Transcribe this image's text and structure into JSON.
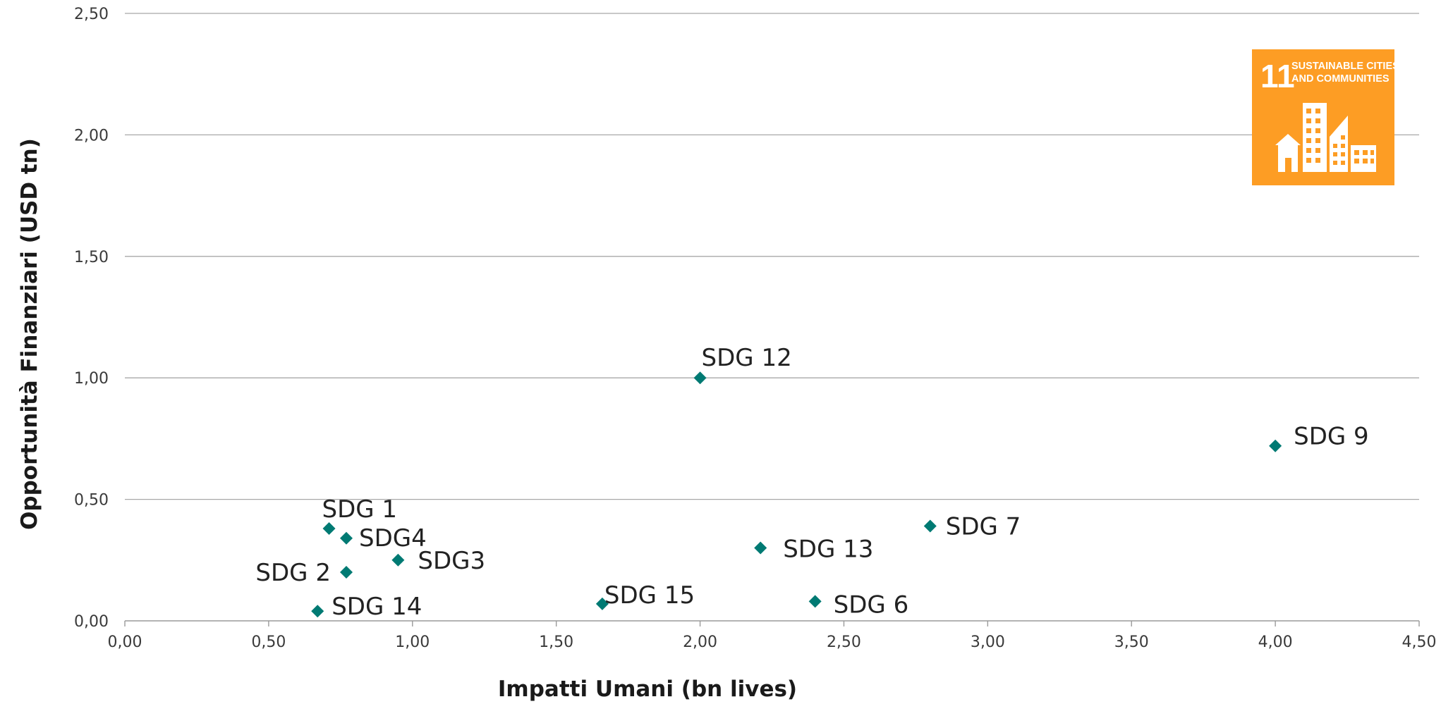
{
  "chart_data": {
    "type": "scatter",
    "xlabel": "Impatti Umani (bn lives)",
    "ylabel": "Opportunità Finanziari (USD tn)",
    "xlim": [
      0,
      4.5
    ],
    "ylim": [
      0,
      2.5
    ],
    "x_ticks": [
      "0,00",
      "0,50",
      "1,00",
      "1,50",
      "2,00",
      "2,50",
      "3,00",
      "3,50",
      "4,00",
      "4,50"
    ],
    "y_ticks": [
      "0,00",
      "0,50",
      "1,00",
      "1,50",
      "2,00",
      "2,50"
    ],
    "grid": "horizontal",
    "marker": "diamond",
    "marker_color": "#007a73",
    "points": [
      {
        "label": "SDG 1",
        "x": 0.71,
        "y": 0.38
      },
      {
        "label": "SDG4",
        "x": 0.77,
        "y": 0.34
      },
      {
        "label": "SDG 2",
        "x": 0.77,
        "y": 0.2
      },
      {
        "label": "SDG3",
        "x": 0.95,
        "y": 0.25
      },
      {
        "label": "SDG 14",
        "x": 0.67,
        "y": 0.04
      },
      {
        "label": "SDG 15",
        "x": 1.66,
        "y": 0.07
      },
      {
        "label": "SDG 12",
        "x": 2.0,
        "y": 1.0
      },
      {
        "label": "SDG 13",
        "x": 2.21,
        "y": 0.3
      },
      {
        "label": "SDG 6",
        "x": 2.4,
        "y": 0.08
      },
      {
        "label": "SDG 7",
        "x": 2.8,
        "y": 0.39
      },
      {
        "label": "SDG 9",
        "x": 4.0,
        "y": 0.72
      }
    ]
  },
  "logo": {
    "number": "11",
    "line1": "SUSTAINABLE CITIES",
    "line2": "AND COMMUNITIES",
    "color": "#fd9d24",
    "icon": "city-buildings-icon"
  }
}
